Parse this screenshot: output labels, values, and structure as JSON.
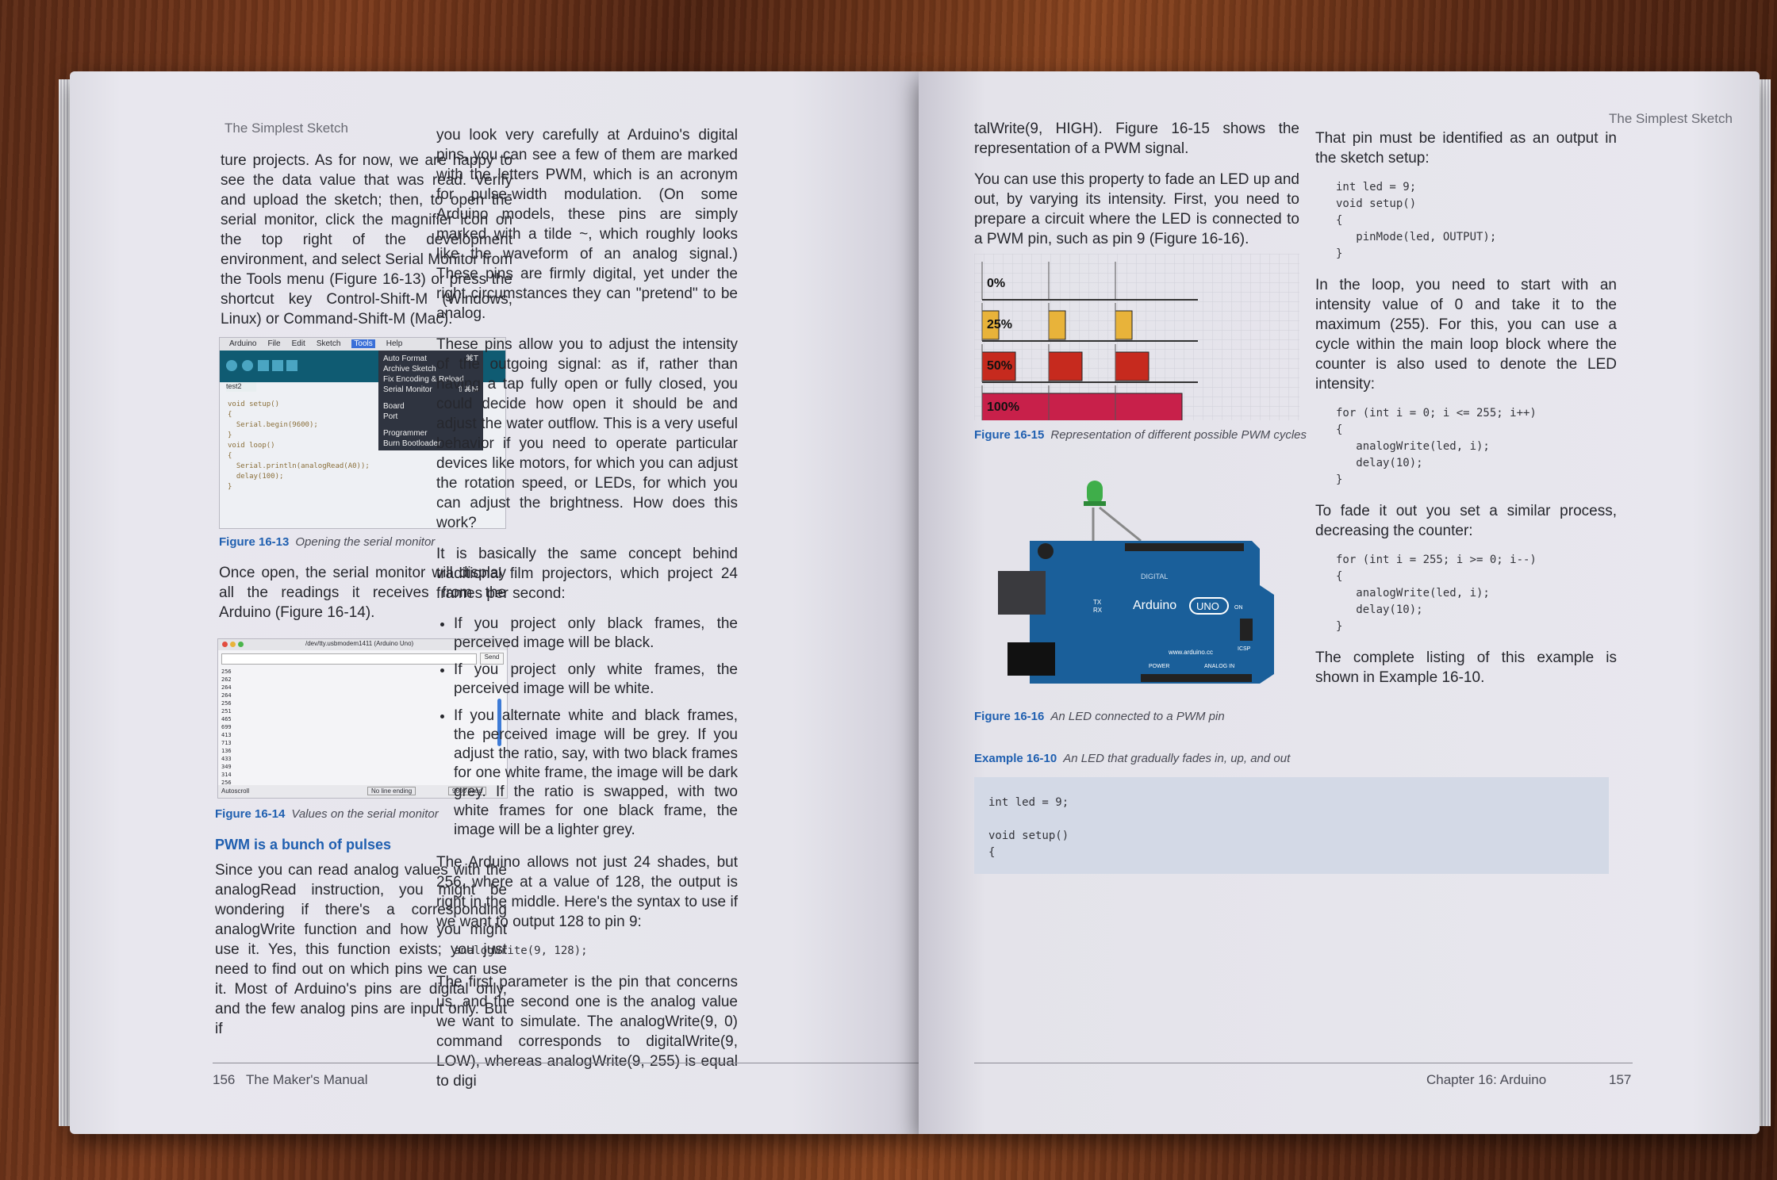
{
  "left_page": {
    "running_head": "The Simplest Sketch",
    "col1_para1": "ture projects. As for now, we are happy to see the data value that was read. Verify and upload the sketch; then, to open the serial monitor, click the magnifier icon on the top right of the development environment, and select Serial Monitor from the Tools menu (Figure 16-13) or press the shortcut key Control-Shift-M (Windows, Linux) or Command-Shift-M (Mac).",
    "fig13": {
      "menubar": [
        "Arduino",
        "File",
        "Edit",
        "Sketch",
        "Tools",
        "Help"
      ],
      "menu_items": [
        "Auto Format",
        "Archive Sketch",
        "Fix Encoding & Reload",
        "Serial Monitor",
        "Board",
        "Port",
        "Programmer",
        "Burn Bootloader"
      ],
      "shortcut_auto": "⌘T",
      "shortcut_serial": "⇧⌘M",
      "tab": "test2",
      "caption_label": "Figure 16-13",
      "caption_text": "Opening the serial monitor"
    },
    "col1_para2": "Once open, the serial monitor will display all the readings it receives from the Arduino (Figure 16-14).",
    "fig14": {
      "title": "/dev/tty.usbmodem1411 (Arduino Uno)",
      "send": "Send",
      "values": [
        "256",
        "262",
        "264",
        "264",
        "256",
        "251",
        "465",
        "699",
        "413",
        "713",
        "136",
        "433",
        "349",
        "314",
        "256"
      ],
      "autoscroll": "Autoscroll",
      "line_ending": "No line ending",
      "baud": "9600 baud",
      "caption_label": "Figure 16-14",
      "caption_text": "Values on the serial monitor"
    },
    "section_title": "PWM is a bunch of pulses",
    "col1_para3": "Since you can read analog values with the analogRead instruction, you might be wondering if there's a corresponding analogWrite function and how you might use it. Yes, this function exists; you just need to find out on which pins we can use it. Most of Arduino's pins are digital only, and the few analog pins are input only. But if",
    "col2_para1": "you look very carefully at Arduino's digital pins, you can see a few of them are marked with the letters PWM, which is an acronym for pulse-width modulation. (On some Arduino models, these pins are simply marked with a tilde ~, which roughly looks like the waveform of an analog signal.) These pins are firmly digital, yet under the right circumstances they can \"pretend\" to be analog.",
    "col2_para2": "These pins allow you to adjust the intensity of the outgoing signal: as if, rather than having a tap fully open or fully closed, you could decide how open it should be and adjust the water outflow. This is a very useful behavior if you need to operate particular devices like motors, for which you can adjust the rotation speed, or LEDs, for which you can adjust the brightness. How does this work?",
    "col2_para3": "It is basically the same concept behind traditional film projectors, which project 24 frames per second:",
    "bullets": [
      "If you project only black frames, the perceived image will be black.",
      "If you project only white frames, the perceived image will be white.",
      "If you alternate white and black frames, the perceived image will be grey. If you adjust the ratio, say, with two black frames for one white frame, the image will be dark grey. If the ratio is swapped, with two white frames for one black frame, the image will be a lighter grey."
    ],
    "col2_para4": "The Arduino allows not just 24 shades, but 256, where at a value of 128, the output is right in the middle. Here's the syntax to use if we want to output 128 to pin 9:",
    "code_analog": "analogWrite(9, 128);",
    "col2_para5": "The first parameter is the pin that concerns us, and the second one is the analog value we want to simulate. The analogWrite(9, 0) command corresponds to digitalWrite(9, LOW), whereas analogWrite(9, 255) is equal to digi",
    "page_number": "156",
    "footer": "The Maker's Manual"
  },
  "right_page": {
    "running_head": "The Simplest Sketch",
    "col1_para1": "talWrite(9, HIGH). Figure 16-15 shows the representation of a PWM signal.",
    "col1_para2": "You can use this property to fade an LED up and out, by varying its intensity. First, you need to prepare a circuit where the LED is connected to a PWM pin, such as pin 9 (Figure 16-16).",
    "fig15": {
      "rows": [
        {
          "label": "0%",
          "duty": 0,
          "color": "#ffffff"
        },
        {
          "label": "25%",
          "duty": 0.25,
          "color": "#e8b33a"
        },
        {
          "label": "50%",
          "duty": 0.5,
          "color": "#c62a1e"
        },
        {
          "label": "100%",
          "duty": 1.0,
          "color": "#c8204a"
        }
      ],
      "caption_label": "Figure 16-15",
      "caption_text": "Representation of different possible PWM cycles"
    },
    "fig16": {
      "board_name": "Arduino",
      "board_model": "UNO",
      "site": "www.arduino.cc",
      "labels": [
        "DIGITAL",
        "POWER",
        "ANALOG IN",
        "ICSP",
        "TX",
        "RX",
        "ON"
      ],
      "caption_label": "Figure 16-16",
      "caption_text": "An LED connected to a PWM pin"
    },
    "example_label": "Example 16-10",
    "example_caption": "An LED that gradually fades in, up, and out",
    "example_code": "int led = 9;\n\nvoid setup()\n{",
    "col2_para1": "That pin must be identified as an output in the sketch setup:",
    "code1": "int led = 9;\nvoid setup()\n{\n   pinMode(led, OUTPUT);\n}",
    "col2_para2": "In the loop, you need to start with an intensity value of 0 and take it to the maximum (255). For this, you can use a cycle within the main loop block where the counter is also used to denote the LED intensity:",
    "code2": "for (int i = 0; i <= 255; i++)\n{\n   analogWrite(led, i);\n   delay(10);\n}",
    "col2_para3": "To fade it out you set a similar process, decreasing the counter:",
    "code3": "for (int i = 255; i >= 0; i--)\n{\n   analogWrite(led, i);\n   delay(10);\n}",
    "col2_para4": "The complete listing of this example is shown in Example 16-10.",
    "footer": "Chapter 16: Arduino",
    "page_number": "157"
  }
}
